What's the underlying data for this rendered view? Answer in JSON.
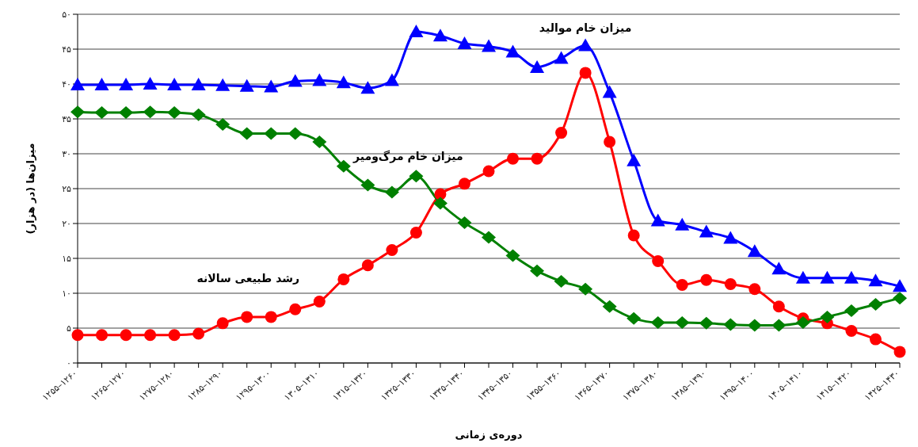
{
  "chart_data": {
    "type": "line",
    "xlabel": "دوره‌ی زمانی",
    "ylabel": "میزان‌ها (در هزار)",
    "categories": [
      "۱۲۵۵–۱۲۶۰",
      null,
      "۱۲۶۵–۱۲۷۰",
      null,
      "۱۲۷۵–۱۲۸۰",
      null,
      "۱۲۸۵–۱۲۹۰",
      null,
      "۱۲۹۵–۱۳۰۰",
      null,
      "۱۳۰۵–۱۳۱۰",
      null,
      "۱۳۱۵–۱۳۲۰",
      null,
      "۱۳۲۵–۱۳۳۰",
      null,
      "۱۳۳۵–۱۳۴۰",
      null,
      "۱۳۴۵–۱۳۵۰",
      null,
      "۱۳۵۵–۱۳۶۰",
      null,
      "۱۳۶۵–۱۳۷۰",
      null,
      "۱۳۷۵–۱۳۸۰",
      null,
      "۱۳۸۵–۱۳۹۰",
      null,
      "۱۳۹۵–۱۴۰۰",
      null,
      "۱۴۰۵–۱۴۱۰",
      null,
      "۱۴۱۵–۱۴۲۰",
      null,
      "۱۴۲۵–۱۴۳۰"
    ],
    "series": [
      {
        "name": "میزان خام موالید",
        "color": "#0000ff",
        "marker": "triangle",
        "values": [
          39.9,
          39.9,
          39.9,
          40,
          39.9,
          39.9,
          39.8,
          39.7,
          39.6,
          40.4,
          40.5,
          40.2,
          39.4,
          40.5,
          47.5,
          46.9,
          45.8,
          45.4,
          44.6,
          42.4,
          43.7,
          45.5,
          38.8,
          29,
          20.4,
          19.8,
          18.8,
          17.9,
          16,
          13.5,
          12.2,
          12.2,
          12.2,
          11.8,
          11
        ]
      },
      {
        "name": "رشد طبیعی سالانه",
        "color": "#ff0000",
        "marker": "circle",
        "values": [
          4,
          4,
          4,
          4,
          4,
          4.2,
          5.7,
          6.6,
          6.6,
          7.7,
          8.8,
          12,
          14,
          16.2,
          18.7,
          24.2,
          25.7,
          27.5,
          29.3,
          29.3,
          33,
          41.6,
          31.7,
          18.3,
          14.6,
          11.2,
          11.9,
          11.3,
          10.6,
          8.1,
          6.4,
          5.7,
          4.6,
          3.4,
          1.6
        ]
      },
      {
        "name": "میزان خام مرگ‌ومیر",
        "color": "#008000",
        "marker": "diamond",
        "values": [
          36,
          35.9,
          35.9,
          36,
          35.9,
          35.6,
          34.2,
          32.9,
          32.9,
          32.9,
          31.7,
          28.2,
          25.5,
          24.5,
          26.8,
          22.9,
          20.1,
          18,
          15.4,
          13.2,
          11.7,
          10.6,
          8.1,
          6.4,
          5.8,
          5.8,
          5.7,
          5.5,
          5.4,
          5.4,
          5.8,
          6.6,
          7.5,
          8.4,
          9.3
        ]
      }
    ],
    "ylim": [
      0,
      50
    ],
    "yticks": [
      {
        "value": 0,
        "label": "۰"
      },
      {
        "value": 5,
        "label": "۵"
      },
      {
        "value": 10,
        "label": "۱۰"
      },
      {
        "value": 15,
        "label": "۱۵"
      },
      {
        "value": 20,
        "label": "۲۰"
      },
      {
        "value": 25,
        "label": "۲۵"
      },
      {
        "value": 30,
        "label": "۳۰"
      },
      {
        "value": 35,
        "label": "۳۵"
      },
      {
        "value": 40,
        "label": "۴۰"
      },
      {
        "value": 45,
        "label": "۴۵"
      },
      {
        "value": 50,
        "label": "۵۰"
      }
    ],
    "grid": "y",
    "legend": false
  }
}
